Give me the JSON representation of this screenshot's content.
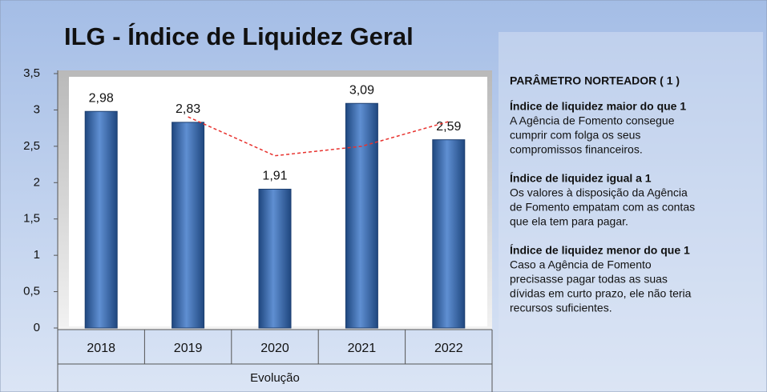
{
  "chart_data": {
    "type": "bar",
    "title": "ILG - Índice de Liquidez Geral",
    "x_label": "Evolução",
    "categories": [
      "2018",
      "2019",
      "2020",
      "2021",
      "2022"
    ],
    "values": [
      2.98,
      2.83,
      1.91,
      3.09,
      2.59
    ],
    "value_labels": [
      "2,98",
      "2,83",
      "1,91",
      "3,09",
      "2,59"
    ],
    "color": "#3565ab",
    "moving_average": {
      "color": "#e8322e",
      "values": [
        null,
        2.905,
        2.37,
        2.5,
        2.84
      ]
    },
    "ylim": [
      0,
      3.5
    ],
    "yticks": [
      0,
      {
        "value": 0.5,
        "label": "0,5"
      },
      1,
      {
        "value": 1.5,
        "label": "1,5"
      },
      2,
      {
        "value": 2.5,
        "label": "2,5"
      },
      3,
      {
        "value": 3.5,
        "label": "3,5"
      }
    ],
    "grid": false
  },
  "parameter": {
    "heading": "PARÂMETRO NORTEADOR ( 1 )",
    "items": [
      {
        "title": "Índice de liquidez maior do que 1",
        "lines": [
          "A Agência de Fomento consegue",
          "cumprir com folga os seus",
          "compromissos financeiros."
        ]
      },
      {
        "title": "Índice de liquidez igual a 1",
        "lines": [
          "Os valores à disposição da Agência",
          "de Fomento empatam com as contas",
          "que ela tem para pagar."
        ]
      },
      {
        "title": "Índice de liquidez menor do que 1",
        "lines": [
          "Caso a Agência  de Fomento",
          "precisasse pagar todas as suas",
          "dívidas em curto prazo, ele não teria",
          "recursos suficientes."
        ]
      }
    ]
  }
}
